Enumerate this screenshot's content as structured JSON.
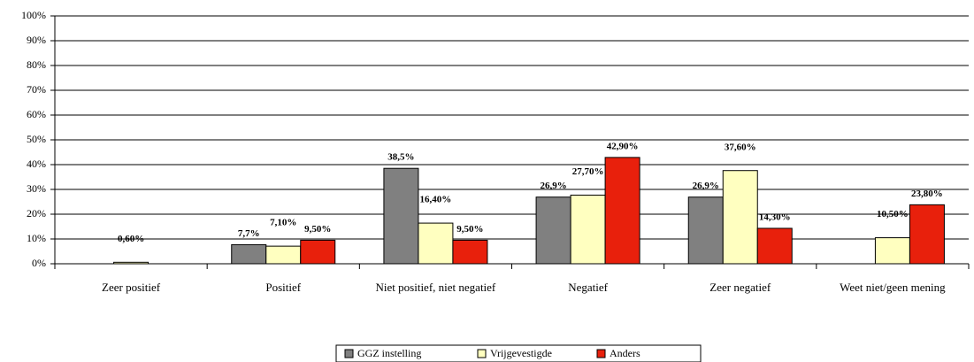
{
  "chart_data": {
    "type": "bar",
    "categories": [
      "Zeer positief",
      "Positief",
      "Niet positief, niet negatief",
      "Negatief",
      "Zeer negatief",
      "Weet niet/geen mening"
    ],
    "series": [
      {
        "name": "GGZ instelling",
        "color": "#808080",
        "values": [
          null,
          7.7,
          38.5,
          26.9,
          26.9,
          null
        ],
        "value_labels": [
          null,
          "7,7%",
          "38,5%",
          "26,9%",
          "26,9%",
          null
        ]
      },
      {
        "name": "Vrijgevestigde",
        "color": "#ffffc0",
        "values": [
          0.6,
          7.1,
          16.4,
          27.7,
          37.6,
          10.5
        ],
        "value_labels": [
          "0,60%",
          "7,10%",
          "16,40%",
          "27,70%",
          "37,60%",
          "10,50%"
        ]
      },
      {
        "name": "Anders",
        "color": "#e8200c",
        "values": [
          null,
          9.5,
          9.5,
          42.9,
          14.3,
          23.8
        ],
        "value_labels": [
          null,
          "9,50%",
          "9,50%",
          "42,90%",
          "14,30%",
          "23,80%"
        ]
      }
    ],
    "ylim": [
      0,
      100
    ],
    "yticks": [
      {
        "value": 0,
        "label": "0%"
      },
      {
        "value": 10,
        "label": "10%"
      },
      {
        "value": 20,
        "label": "20%"
      },
      {
        "value": 30,
        "label": "30%"
      },
      {
        "value": 40,
        "label": "40%"
      },
      {
        "value": 50,
        "label": "50%"
      },
      {
        "value": 60,
        "label": "60%"
      },
      {
        "value": 70,
        "label": "70%"
      },
      {
        "value": 80,
        "label": "80%"
      },
      {
        "value": 90,
        "label": "90%"
      },
      {
        "value": 100,
        "label": "100%"
      }
    ],
    "grid": true,
    "legend": "bottom"
  }
}
